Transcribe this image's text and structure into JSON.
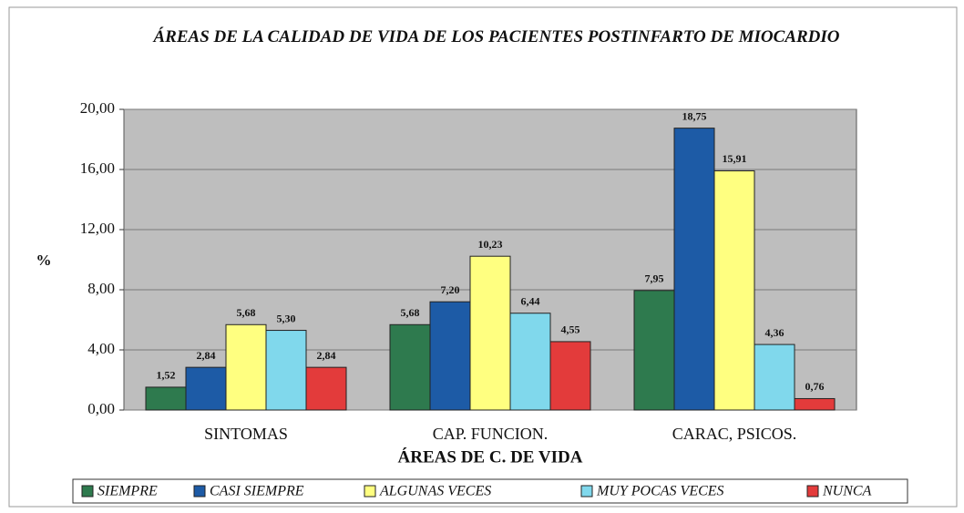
{
  "chart_data": {
    "type": "bar",
    "title": "ÁREAS DE LA CALIDAD DE VIDA DE LOS PACIENTES POSTINFARTO DE MIOCARDIO",
    "y_label": "%",
    "x_label": "ÁREAS DE C. DE VIDA",
    "categories": [
      "SINTOMAS",
      "CAP. FUNCION.",
      "CARAC, PSICOS."
    ],
    "series": [
      {
        "name": "SIEMPRE",
        "color": "#2e7a4e",
        "values": [
          1.52,
          5.68,
          7.95
        ],
        "value_labels": [
          "1,52",
          "5,68",
          "7,95"
        ]
      },
      {
        "name": "CASI SIEMPRE",
        "color": "#1d5ba6",
        "values": [
          2.84,
          7.2,
          18.75
        ],
        "value_labels": [
          "2,84",
          "7,20",
          "18,75"
        ]
      },
      {
        "name": "ALGUNAS VECES",
        "color": "#ffff80",
        "values": [
          5.68,
          10.23,
          15.91
        ],
        "value_labels": [
          "5,68",
          "10,23",
          "15,91"
        ]
      },
      {
        "name": "MUY POCAS VECES",
        "color": "#80d8ec",
        "values": [
          5.3,
          6.44,
          4.36
        ],
        "value_labels": [
          "5,30",
          "6,44",
          "4,36"
        ]
      },
      {
        "name": "NUNCA",
        "color": "#e33b3b",
        "values": [
          2.84,
          4.55,
          0.76
        ],
        "value_labels": [
          "2,84",
          "4,55",
          "0,76"
        ]
      }
    ],
    "ylim": [
      0,
      20
    ],
    "yticks": [
      {
        "value": 0,
        "label": "0,00"
      },
      {
        "value": 4,
        "label": "4,00"
      },
      {
        "value": 8,
        "label": "8,00"
      },
      {
        "value": 12,
        "label": "12,00"
      },
      {
        "value": 16,
        "label": "16,00"
      },
      {
        "value": 20,
        "label": "20,00"
      }
    ],
    "grid": true,
    "legend": "bottom"
  }
}
